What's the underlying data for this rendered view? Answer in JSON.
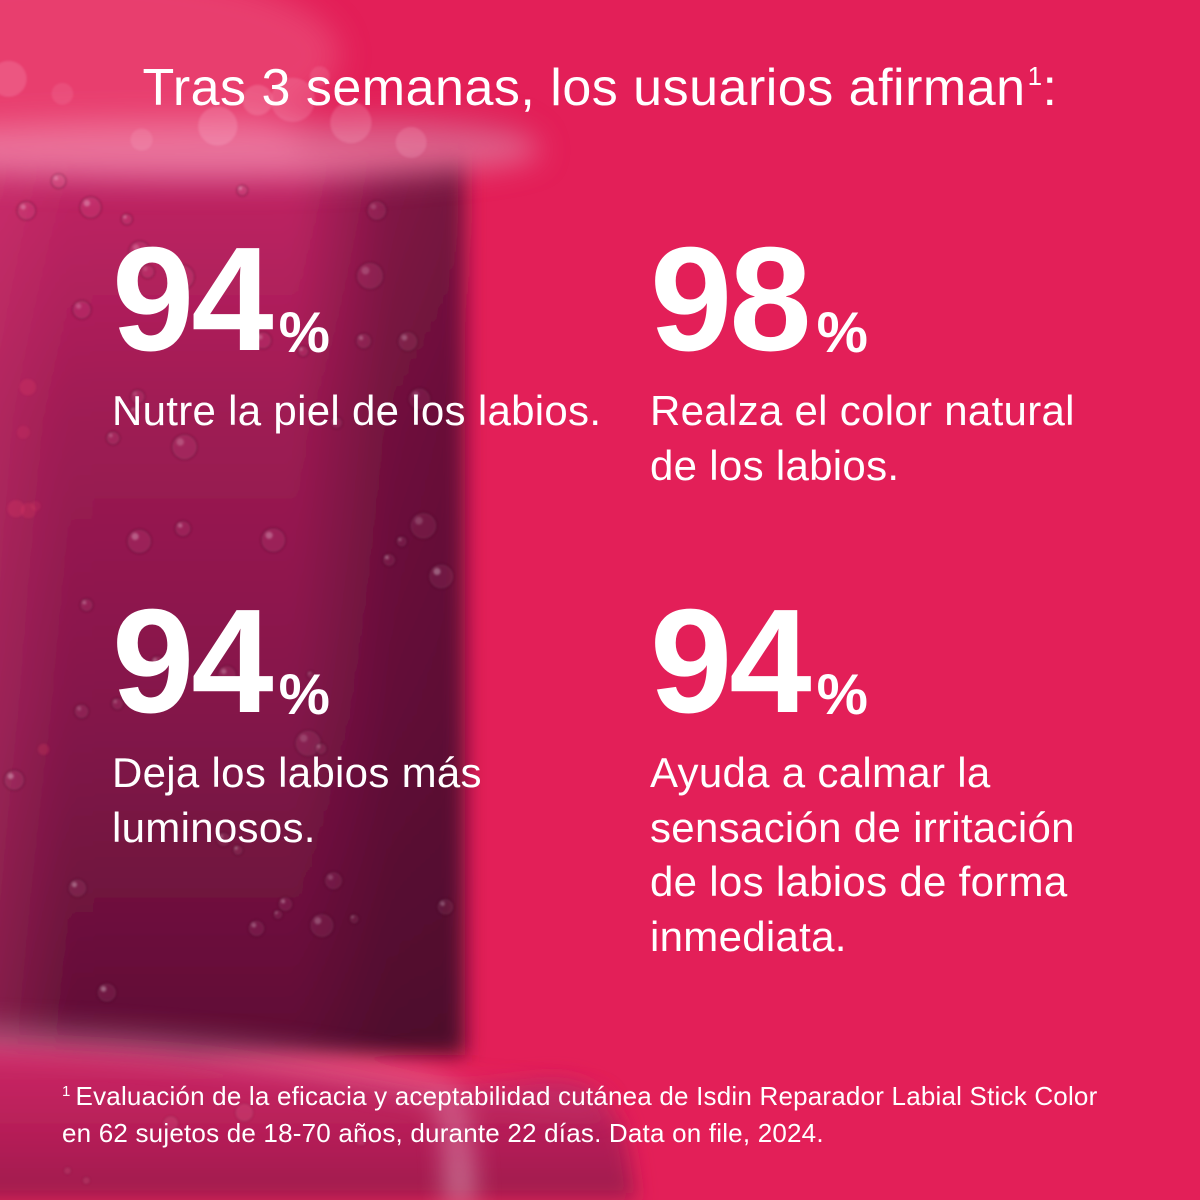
{
  "colors": {
    "background": "#e31f58",
    "text": "#ffffff",
    "lipstick_bright": "#c32565",
    "lipstick_mid": "#9c1a52",
    "lipstick_dark": "#5e0e34",
    "base_magenta": "#ce2968",
    "base_highlight": "#f6bdd2"
  },
  "header": {
    "title": "Tras 3 semanas, los usuarios afirman",
    "title_superscript": "1",
    "title_suffix": ":"
  },
  "stats": [
    {
      "value": "94",
      "unit": "%",
      "label": "Nutre la piel de los labios."
    },
    {
      "value": "98",
      "unit": "%",
      "label": "Realza el color natural de los labios."
    },
    {
      "value": "94",
      "unit": "%",
      "label": "Deja los labios más luminosos."
    },
    {
      "value": "94",
      "unit": "%",
      "label": "Ayuda a calmar la sensación de irritación de los labios de forma inmediata."
    }
  ],
  "footnote": {
    "superscript": "1",
    "text": "Evaluación de la eficacia y aceptabilidad cutánea de Isdin Reparador Labial Stick Color en 62 sujetos de 18-70 años, durante 22 días. Data on file, 2024."
  }
}
